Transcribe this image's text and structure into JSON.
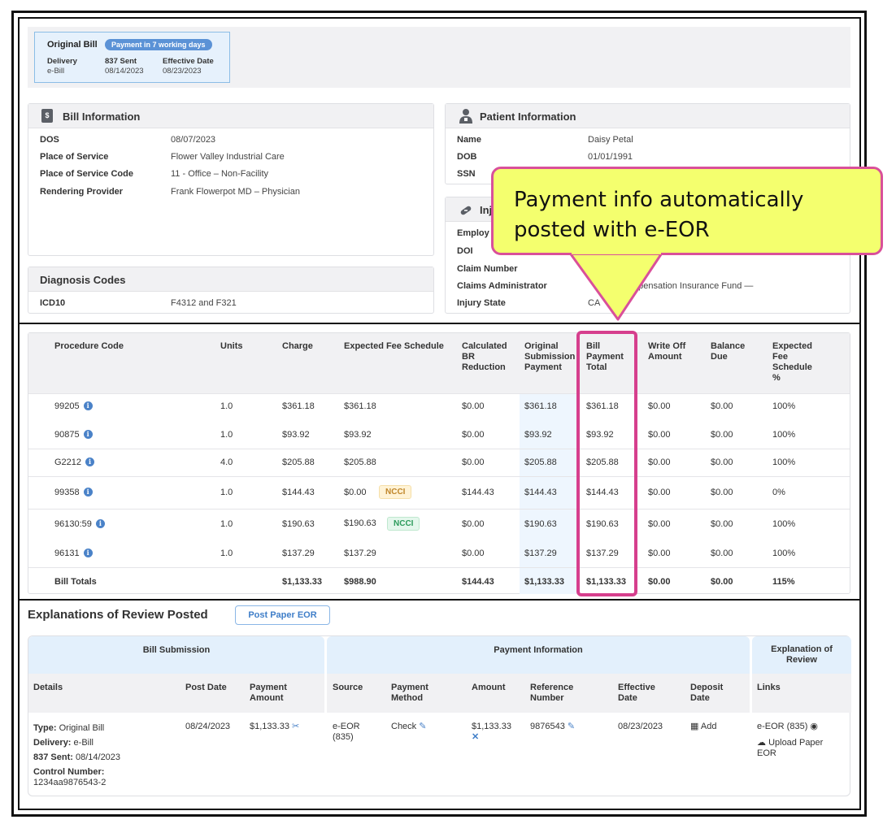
{
  "bill_card": {
    "title": "Original Bill",
    "badge": "Payment in 7 working days",
    "delivery_label": "Delivery",
    "delivery_value": "e-Bill",
    "sent_label": "837 Sent",
    "sent_value": "08/14/2023",
    "effective_label": "Effective Date",
    "effective_value": "08/23/2023"
  },
  "bill_info": {
    "title": "Bill Information",
    "rows": [
      {
        "k": "DOS",
        "v": "08/07/2023"
      },
      {
        "k": "Place of Service",
        "v": "Flower Valley Industrial Care"
      },
      {
        "k": "Place of Service Code",
        "v": "11 - Office – Non-Facility"
      },
      {
        "k": "Rendering Provider",
        "v": "Frank Flowerpot MD – Physician"
      }
    ]
  },
  "diagnosis": {
    "title": "Diagnosis Codes",
    "k": "ICD10",
    "v": "F4312 and F321"
  },
  "patient": {
    "title": "Patient Information",
    "rows": [
      {
        "k": "Name",
        "v": "Daisy Petal"
      },
      {
        "k": "DOB",
        "v": "01/01/1991"
      },
      {
        "k": "SSN",
        "v": ""
      }
    ]
  },
  "injury": {
    "title": "Inj",
    "rows": [
      {
        "k": "Employ",
        "v": ""
      },
      {
        "k": "DOI",
        "v": ""
      },
      {
        "k": "Claim Number",
        "v": ""
      },
      {
        "k": "Claims Administrator",
        "v": "mpensation Insurance Fund —"
      },
      {
        "k": "Injury State",
        "v": "CA"
      }
    ]
  },
  "callout": {
    "line1": "Payment info automatically",
    "line2": "posted with e-EOR",
    "border_color": "#d9509a",
    "fill_color": "#f4ff6e"
  },
  "procedures": {
    "headers": [
      [
        "Procedure Code"
      ],
      [
        "Units"
      ],
      [
        "Charge"
      ],
      [
        "Expected Fee Schedule"
      ],
      [
        "Calculated",
        "BR",
        "Reduction"
      ],
      [
        "Original",
        "Submission",
        "Payment"
      ],
      [
        "Bill",
        "Payment",
        "Total"
      ],
      [
        "Write Off",
        "Amount"
      ],
      [
        "Balance",
        "Due"
      ],
      [
        "Expected",
        "Fee",
        "Schedule",
        "%"
      ]
    ],
    "rows": [
      {
        "code": "99205",
        "units": "1.0",
        "charge": "$361.18",
        "efs": "$361.18",
        "badge": "",
        "br": "$0.00",
        "orig": "$361.18",
        "total": "$361.18",
        "wo": "$0.00",
        "bal": "$0.00",
        "pct": "100%"
      },
      {
        "code": "90875",
        "units": "1.0",
        "charge": "$93.92",
        "efs": "$93.92",
        "badge": "",
        "br": "$0.00",
        "orig": "$93.92",
        "total": "$93.92",
        "wo": "$0.00",
        "bal": "$0.00",
        "pct": "100%"
      },
      {
        "code": "G2212",
        "units": "4.0",
        "charge": "$205.88",
        "efs": "$205.88",
        "badge": "",
        "br": "$0.00",
        "orig": "$205.88",
        "total": "$205.88",
        "wo": "$0.00",
        "bal": "$0.00",
        "pct": "100%"
      },
      {
        "code": "99358",
        "units": "1.0",
        "charge": "$144.43",
        "efs": "$0.00",
        "badge": "NCCI",
        "badge_type": "warn",
        "br": "$144.43",
        "orig": "$144.43",
        "total": "$144.43",
        "wo": "$0.00",
        "bal": "$0.00",
        "pct": "0%"
      },
      {
        "code": "96130:59",
        "units": "1.0",
        "charge": "$190.63",
        "efs": "$190.63",
        "badge": "NCCI",
        "badge_type": "ok",
        "br": "$0.00",
        "orig": "$190.63",
        "total": "$190.63",
        "wo": "$0.00",
        "bal": "$0.00",
        "pct": "100%"
      },
      {
        "code": "96131",
        "units": "1.0",
        "charge": "$137.29",
        "efs": "$137.29",
        "badge": "",
        "br": "$0.00",
        "orig": "$137.29",
        "total": "$137.29",
        "wo": "$0.00",
        "bal": "$0.00",
        "pct": "100%"
      }
    ],
    "totals": {
      "label": "Bill Totals",
      "charge": "$1,133.33",
      "efs": "$988.90",
      "br": "$144.43",
      "orig": "$1,133.33",
      "total": "$1,133.33",
      "wo": "$0.00",
      "bal": "$0.00",
      "pct": "115%"
    }
  },
  "eor": {
    "title": "Explanations of Review Posted",
    "post_button": "Post Paper EOR",
    "group_bill": "Bill Submission",
    "group_payment": "Payment Information",
    "group_eor": "Explanation of Review",
    "sub_headers": {
      "details": "Details",
      "post_date": "Post Date",
      "payment_amount": "Payment Amount",
      "source": "Source",
      "payment_method": "Payment Method",
      "amount": "Amount",
      "reference": "Reference Number",
      "effective": "Effective Date",
      "deposit": "Deposit Date",
      "links": "Links"
    },
    "row": {
      "type_label": "Type:",
      "type_value": "Original Bill",
      "delivery_label": "Delivery:",
      "delivery_value": "e-Bill",
      "sent_label": "837 Sent:",
      "sent_value": "08/14/2023",
      "control_label": "Control Number:",
      "control_value": "1234aa9876543-2",
      "post_date": "08/24/2023",
      "payment_amount": "$1,133.33",
      "source": "e-EOR (835)",
      "method": "Check",
      "amount": "$1,133.33",
      "reference": "9876543",
      "effective": "08/23/2023",
      "deposit": "Add",
      "link_eor": "e-EOR (835)",
      "link_upload": "Upload Paper EOR"
    }
  }
}
